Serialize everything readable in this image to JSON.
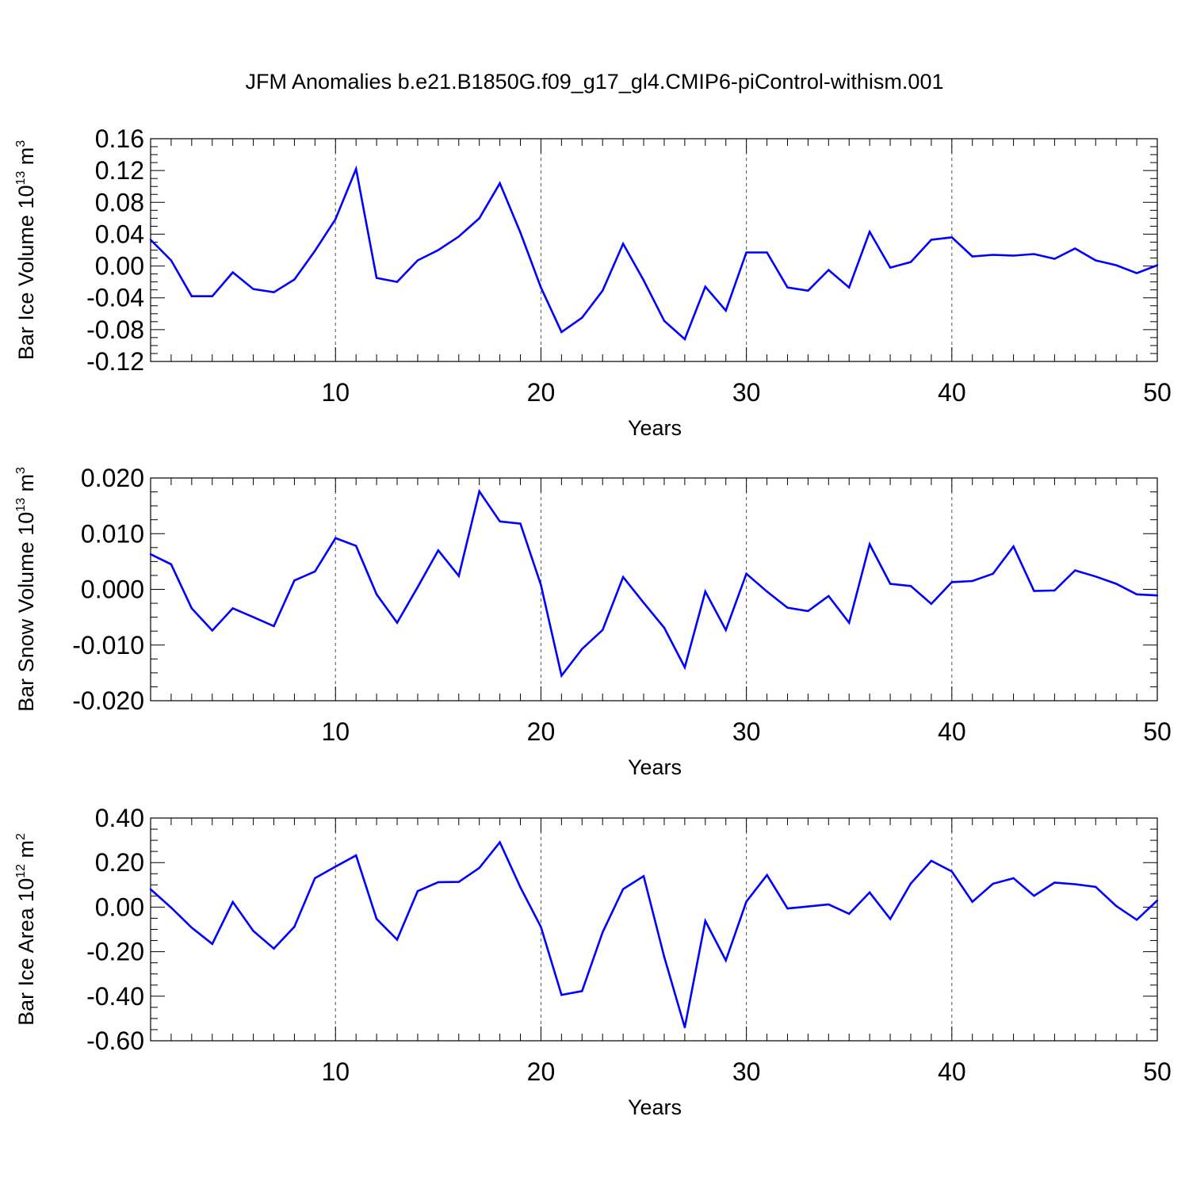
{
  "title": "JFM Anomalies b.e21.B1850G.f09_g17_gl4.CMIP6-piControl-withism.001",
  "line_color": "#0000ff",
  "chart_data": [
    {
      "type": "line",
      "xlabel": "Years",
      "ylabel": {
        "text": "Bar Ice Volume 10",
        "exp": "13",
        "unit": " m",
        "unit_exp": "3"
      },
      "xlim": [
        1,
        50
      ],
      "ylim": [
        -0.12,
        0.16
      ],
      "xticks": [
        10,
        20,
        30,
        40,
        50
      ],
      "xtick_labels": [
        "10",
        "20",
        "30",
        "40",
        "50"
      ],
      "yticks": [
        -0.12,
        -0.08,
        -0.04,
        0.0,
        0.04,
        0.08,
        0.12,
        0.16
      ],
      "ytick_labels": [
        "-0.12",
        "-0.08",
        "-0.04",
        "0.00",
        "0.04",
        "0.08",
        "0.12",
        "0.16"
      ],
      "grid": "vertical dashed at major x ticks",
      "x": [
        1,
        2,
        3,
        4,
        5,
        6,
        7,
        8,
        9,
        10,
        11,
        12,
        13,
        14,
        15,
        16,
        17,
        18,
        19,
        20,
        21,
        22,
        23,
        24,
        25,
        26,
        27,
        28,
        29,
        30,
        31,
        32,
        33,
        34,
        35,
        36,
        37,
        38,
        39,
        40,
        41,
        42,
        43,
        44,
        45,
        46,
        47,
        48,
        49,
        50
      ],
      "values": [
        0.033,
        0.007,
        -0.038,
        -0.038,
        -0.008,
        -0.029,
        -0.033,
        -0.017,
        0.019,
        0.059,
        0.122,
        -0.015,
        -0.02,
        0.007,
        0.02,
        0.037,
        0.06,
        0.104,
        0.042,
        -0.027,
        -0.083,
        -0.065,
        -0.031,
        0.028,
        -0.018,
        -0.069,
        -0.092,
        -0.026,
        -0.056,
        0.017,
        0.017,
        -0.027,
        -0.031,
        -0.005,
        -0.027,
        0.043,
        -0.002,
        0.005,
        0.033,
        0.036,
        0.012,
        0.014,
        0.013,
        0.015,
        0.009,
        0.022,
        0.007,
        0.001,
        -0.009,
        0.001
      ]
    },
    {
      "type": "line",
      "xlabel": "Years",
      "ylabel": {
        "text": "Bar Snow Volume 10",
        "exp": "13",
        "unit": " m",
        "unit_exp": "3"
      },
      "xlim": [
        1,
        50
      ],
      "ylim": [
        -0.02,
        0.02
      ],
      "xticks": [
        10,
        20,
        30,
        40,
        50
      ],
      "xtick_labels": [
        "10",
        "20",
        "30",
        "40",
        "50"
      ],
      "yticks": [
        -0.02,
        -0.01,
        0.0,
        0.01,
        0.02
      ],
      "ytick_labels": [
        "-0.020",
        "-0.010",
        "0.000",
        "0.010",
        "0.020"
      ],
      "grid": "vertical dashed at major x ticks",
      "x": [
        1,
        2,
        3,
        4,
        5,
        6,
        7,
        8,
        9,
        10,
        11,
        12,
        13,
        14,
        15,
        16,
        17,
        18,
        19,
        20,
        21,
        22,
        23,
        24,
        25,
        26,
        27,
        28,
        29,
        30,
        31,
        32,
        33,
        34,
        35,
        36,
        37,
        38,
        39,
        40,
        41,
        42,
        43,
        44,
        45,
        46,
        47,
        48,
        49,
        50
      ],
      "values": [
        0.0063,
        0.0045,
        -0.0034,
        -0.0074,
        -0.0034,
        -0.005,
        -0.0066,
        0.0016,
        0.0032,
        0.0092,
        0.0078,
        -0.0009,
        -0.006,
        0.0004,
        0.007,
        0.0024,
        0.0176,
        0.0122,
        0.0118,
        0.0008,
        -0.0155,
        -0.0107,
        -0.0073,
        0.0022,
        -0.0024,
        -0.0069,
        -0.014,
        -0.0004,
        -0.0073,
        0.0028,
        -0.0004,
        -0.0033,
        -0.0039,
        -0.0012,
        -0.006,
        0.0081,
        0.001,
        0.0006,
        -0.0026,
        0.0013,
        0.0015,
        0.0028,
        0.0077,
        -0.0003,
        -0.0002,
        0.0034,
        0.0023,
        0.001,
        -0.0009,
        -0.0011
      ]
    },
    {
      "type": "line",
      "xlabel": "Years",
      "ylabel": {
        "text": "Bar Ice Area 10",
        "exp": "12",
        "unit": " m",
        "unit_exp": "2"
      },
      "xlim": [
        1,
        50
      ],
      "ylim": [
        -0.6,
        0.4
      ],
      "xticks": [
        10,
        20,
        30,
        40,
        50
      ],
      "xtick_labels": [
        "10",
        "20",
        "30",
        "40",
        "50"
      ],
      "yticks": [
        -0.6,
        -0.4,
        -0.2,
        0.0,
        0.2,
        0.4
      ],
      "ytick_labels": [
        "-0.60",
        "-0.40",
        "-0.20",
        "0.00",
        "0.20",
        "0.40"
      ],
      "grid": "vertical dashed at major x ticks",
      "x": [
        1,
        2,
        3,
        4,
        5,
        6,
        7,
        8,
        9,
        10,
        11,
        12,
        13,
        14,
        15,
        16,
        17,
        18,
        19,
        20,
        21,
        22,
        23,
        24,
        25,
        26,
        27,
        28,
        29,
        30,
        31,
        32,
        33,
        34,
        35,
        36,
        37,
        38,
        39,
        40,
        41,
        42,
        43,
        44,
        45,
        46,
        47,
        48,
        49,
        50
      ],
      "values": [
        0.08,
        -0.002,
        -0.092,
        -0.165,
        0.023,
        -0.107,
        -0.186,
        -0.088,
        0.13,
        0.182,
        0.232,
        -0.053,
        -0.146,
        0.072,
        0.112,
        0.113,
        0.176,
        0.291,
        0.089,
        -0.089,
        -0.394,
        -0.377,
        -0.113,
        0.081,
        0.139,
        -0.224,
        -0.54,
        -0.062,
        -0.239,
        0.025,
        0.144,
        -0.006,
        0.003,
        0.012,
        -0.03,
        0.066,
        -0.053,
        0.106,
        0.208,
        0.16,
        0.024,
        0.105,
        0.13,
        0.051,
        0.11,
        0.103,
        0.091,
        0.005,
        -0.057,
        0.03
      ]
    }
  ]
}
